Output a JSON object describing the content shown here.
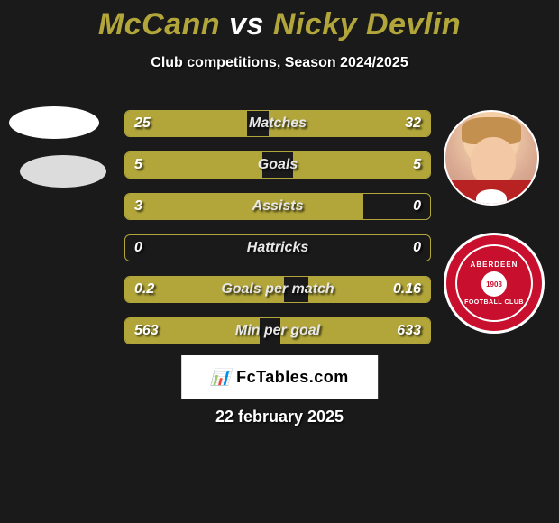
{
  "title": {
    "player1": "McCann",
    "vs": "vs",
    "player2": "Nicky Devlin"
  },
  "subtitle": "Club competitions, Season 2024/2025",
  "stats": [
    {
      "label": "Matches",
      "left_val": "25",
      "right_val": "32",
      "left_pct": 40,
      "right_pct": 53
    },
    {
      "label": "Goals",
      "left_val": "5",
      "right_val": "5",
      "left_pct": 45,
      "right_pct": 45
    },
    {
      "label": "Assists",
      "left_val": "3",
      "right_val": "0",
      "left_pct": 78,
      "right_pct": 0
    },
    {
      "label": "Hattricks",
      "left_val": "0",
      "right_val": "0",
      "left_pct": 0,
      "right_pct": 0
    },
    {
      "label": "Goals per match",
      "left_val": "0.2",
      "right_val": "0.16",
      "left_pct": 52,
      "right_pct": 40
    },
    {
      "label": "Min per goal",
      "left_val": "563",
      "right_val": "633",
      "left_pct": 44,
      "right_pct": 49
    }
  ],
  "colors": {
    "background": "#1a1a1a",
    "accent": "#b2a63a",
    "text": "#ffffff"
  },
  "badges": {
    "right_club_top": "ABERDEEN",
    "right_club_year": "1903",
    "right_club_bottom": "FOOTBALL CLUB"
  },
  "footer": {
    "brand_icon": "📊",
    "brand": "FcTables.com",
    "date": "22 february 2025"
  }
}
